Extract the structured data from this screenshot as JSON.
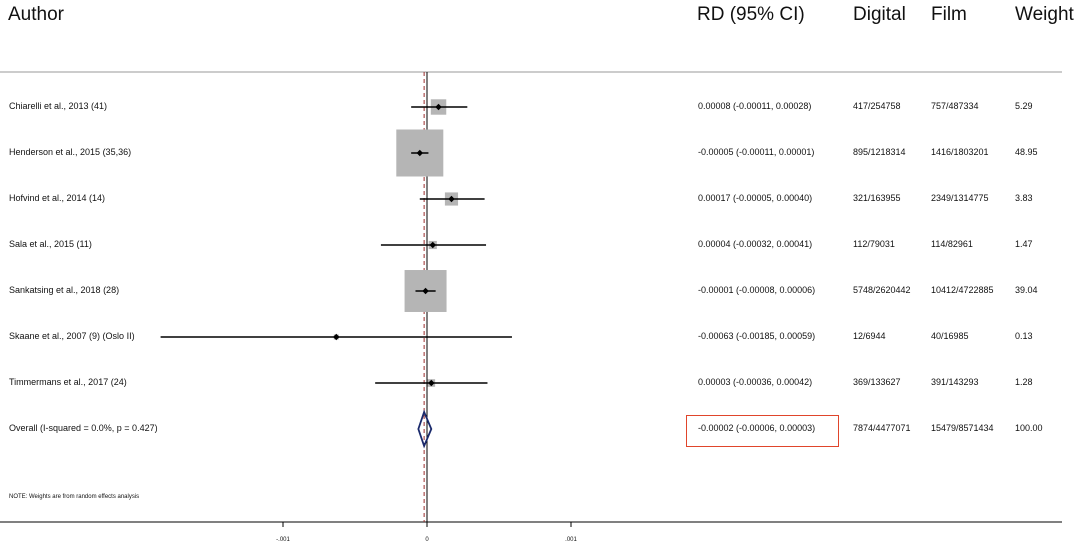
{
  "header": {
    "author": "Author",
    "rd": "RD (95% CI)",
    "digital": "Digital",
    "film": "Film",
    "weight": "Weight"
  },
  "note": "NOTE: Weights are from random effects analysis",
  "chart_data": {
    "type": "forest",
    "xlabel": "",
    "xlim": [
      -0.00135,
      0.00125
    ],
    "x_ticks": [
      {
        "value": -0.001,
        "label": "-.001"
      },
      {
        "value": 0,
        "label": "0"
      },
      {
        "value": 0.001,
        "label": ".001"
      }
    ],
    "null_line": 0,
    "overall_line": -2e-05,
    "studies": [
      {
        "author": "Chiarelli et al., 2013 (41)",
        "rd": 8e-05,
        "lo": -0.00011,
        "hi": 0.00028,
        "ci_text": "0.00008 (-0.00011, 0.00028)",
        "digital": "417/254758",
        "film": "757/487334",
        "weight": 5.29,
        "weight_text": "5.29"
      },
      {
        "author": "Henderson et al., 2015 (35,36)",
        "rd": -5e-05,
        "lo": -0.00011,
        "hi": 1e-05,
        "ci_text": "-0.00005 (-0.00011, 0.00001)",
        "digital": "895/1218314",
        "film": "1416/1803201",
        "weight": 48.95,
        "weight_text": "48.95"
      },
      {
        "author": "Hofvind et al., 2014 (14)",
        "rd": 0.00017,
        "lo": -5e-05,
        "hi": 0.0004,
        "ci_text": "0.00017 (-0.00005, 0.00040)",
        "digital": "321/163955",
        "film": "2349/1314775",
        "weight": 3.83,
        "weight_text": "3.83"
      },
      {
        "author": "Sala et al., 2015 (11)",
        "rd": 4e-05,
        "lo": -0.00032,
        "hi": 0.00041,
        "ci_text": "0.00004 (-0.00032, 0.00041)",
        "digital": "112/79031",
        "film": "114/82961",
        "weight": 1.47,
        "weight_text": "1.47"
      },
      {
        "author": "Sankatsing et al., 2018 (28)",
        "rd": -1e-05,
        "lo": -8e-05,
        "hi": 6e-05,
        "ci_text": "-0.00001 (-0.00008, 0.00006)",
        "digital": "5748/2620442",
        "film": "10412/4722885",
        "weight": 39.04,
        "weight_text": "39.04"
      },
      {
        "author": "Skaane et al., 2007 (9) (Oslo II)",
        "rd": -0.00063,
        "lo": -0.00185,
        "hi": 0.00059,
        "ci_text": "-0.00063 (-0.00185, 0.00059)",
        "digital": "12/6944",
        "film": "40/16985",
        "weight": 0.13,
        "weight_text": "0.13"
      },
      {
        "author": "Timmermans et al., 2017 (24)",
        "rd": 3e-05,
        "lo": -0.00036,
        "hi": 0.00042,
        "ci_text": "0.00003 (-0.00036, 0.00042)",
        "digital": "369/133627",
        "film": "391/143293",
        "weight": 1.28,
        "weight_text": "1.28"
      }
    ],
    "overall": {
      "author": "Overall  (I-squared = 0.0%, p = 0.427)",
      "rd": -2e-05,
      "lo": -6e-05,
      "hi": 3e-05,
      "ci_text": "-0.00002 (-0.00006, 0.00003)",
      "digital": "7874/4477071",
      "film": "15479/8571434",
      "weight": 100,
      "weight_text": "100.00"
    },
    "colors": {
      "box": "#b5b5b5",
      "line": "#000000",
      "diamond": "#1a2a6c",
      "null_line": "#000000",
      "overall_line": "#9b2d2d",
      "highlight": "#e0452b"
    }
  }
}
